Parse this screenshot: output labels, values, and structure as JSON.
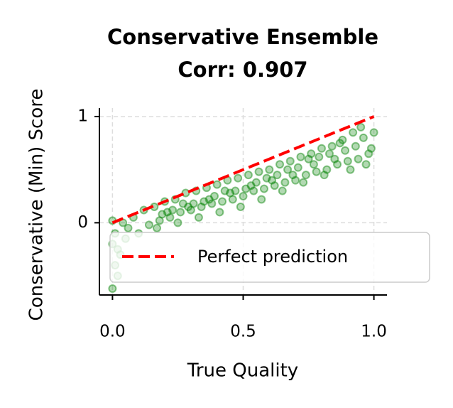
{
  "chart_data": {
    "type": "scatter",
    "title": "Conservative Ensemble",
    "subtitle": "Corr: 0.907",
    "x_label": "True Quality",
    "y_label": "Conservative (Min) Score",
    "xlim": [
      -0.05,
      1.05
    ],
    "ylim": [
      -0.68,
      1.08
    ],
    "xticks": [
      {
        "value": 0,
        "label": "0.0"
      },
      {
        "value": 0.5,
        "label": "0.5"
      },
      {
        "value": 1,
        "label": "1.0"
      }
    ],
    "yticks": [
      0,
      1
    ],
    "grid": true,
    "legend_position": "lower right",
    "series": [
      {
        "color": "green",
        "x": [
          0.0,
          0.01,
          0.02,
          0.0,
          0.01,
          0.03,
          0.05,
          0.02,
          0.0,
          0.04,
          0.06,
          0.08,
          0.1,
          0.12,
          0.14,
          0.16,
          0.18,
          0.2,
          0.22,
          0.24,
          0.26,
          0.28,
          0.3,
          0.32,
          0.34,
          0.36,
          0.38,
          0.4,
          0.42,
          0.44,
          0.46,
          0.48,
          0.5,
          0.52,
          0.54,
          0.56,
          0.58,
          0.6,
          0.62,
          0.64,
          0.66,
          0.68,
          0.7,
          0.72,
          0.74,
          0.76,
          0.78,
          0.8,
          0.82,
          0.84,
          0.86,
          0.88,
          0.9,
          0.92,
          0.94,
          0.96,
          0.98,
          1.0,
          0.99,
          0.97,
          0.95,
          0.93,
          0.91,
          0.89,
          0.87,
          0.85,
          0.83,
          0.81,
          0.79,
          0.77,
          0.75,
          0.73,
          0.71,
          0.69,
          0.67,
          0.65,
          0.63,
          0.61,
          0.59,
          0.57,
          0.55,
          0.53,
          0.51,
          0.49,
          0.47,
          0.45,
          0.43,
          0.41,
          0.39,
          0.37,
          0.35,
          0.33,
          0.31,
          0.29,
          0.27,
          0.25,
          0.23,
          0.21,
          0.19,
          0.17
        ],
        "values": [
          -0.62,
          -0.4,
          -0.25,
          0.02,
          -0.1,
          -0.3,
          -0.15,
          -0.5,
          -0.2,
          0.0,
          -0.05,
          0.05,
          -0.1,
          0.12,
          -0.02,
          0.15,
          0.02,
          0.2,
          0.05,
          0.22,
          0.1,
          0.28,
          0.12,
          0.3,
          0.15,
          0.33,
          0.18,
          0.36,
          0.2,
          0.4,
          0.22,
          0.42,
          0.25,
          0.45,
          0.3,
          0.48,
          0.32,
          0.5,
          0.35,
          0.55,
          0.38,
          0.58,
          0.4,
          0.62,
          0.45,
          0.65,
          0.48,
          0.7,
          0.5,
          0.72,
          0.55,
          0.78,
          0.58,
          0.85,
          0.6,
          0.8,
          0.65,
          0.85,
          0.7,
          0.55,
          0.9,
          0.72,
          0.5,
          0.68,
          0.75,
          0.6,
          0.65,
          0.45,
          0.62,
          0.55,
          0.6,
          0.38,
          0.52,
          0.45,
          0.5,
          0.3,
          0.45,
          0.4,
          0.42,
          0.22,
          0.38,
          0.35,
          0.32,
          0.15,
          0.3,
          0.28,
          0.3,
          0.1,
          0.25,
          0.22,
          0.2,
          0.05,
          0.18,
          0.15,
          0.18,
          0.0,
          0.12,
          0.1,
          0.08,
          -0.05
        ]
      }
    ],
    "reference_line": {
      "name": "Perfect prediction",
      "color": "red",
      "x": [
        0,
        1
      ],
      "values": [
        0,
        1
      ]
    }
  }
}
